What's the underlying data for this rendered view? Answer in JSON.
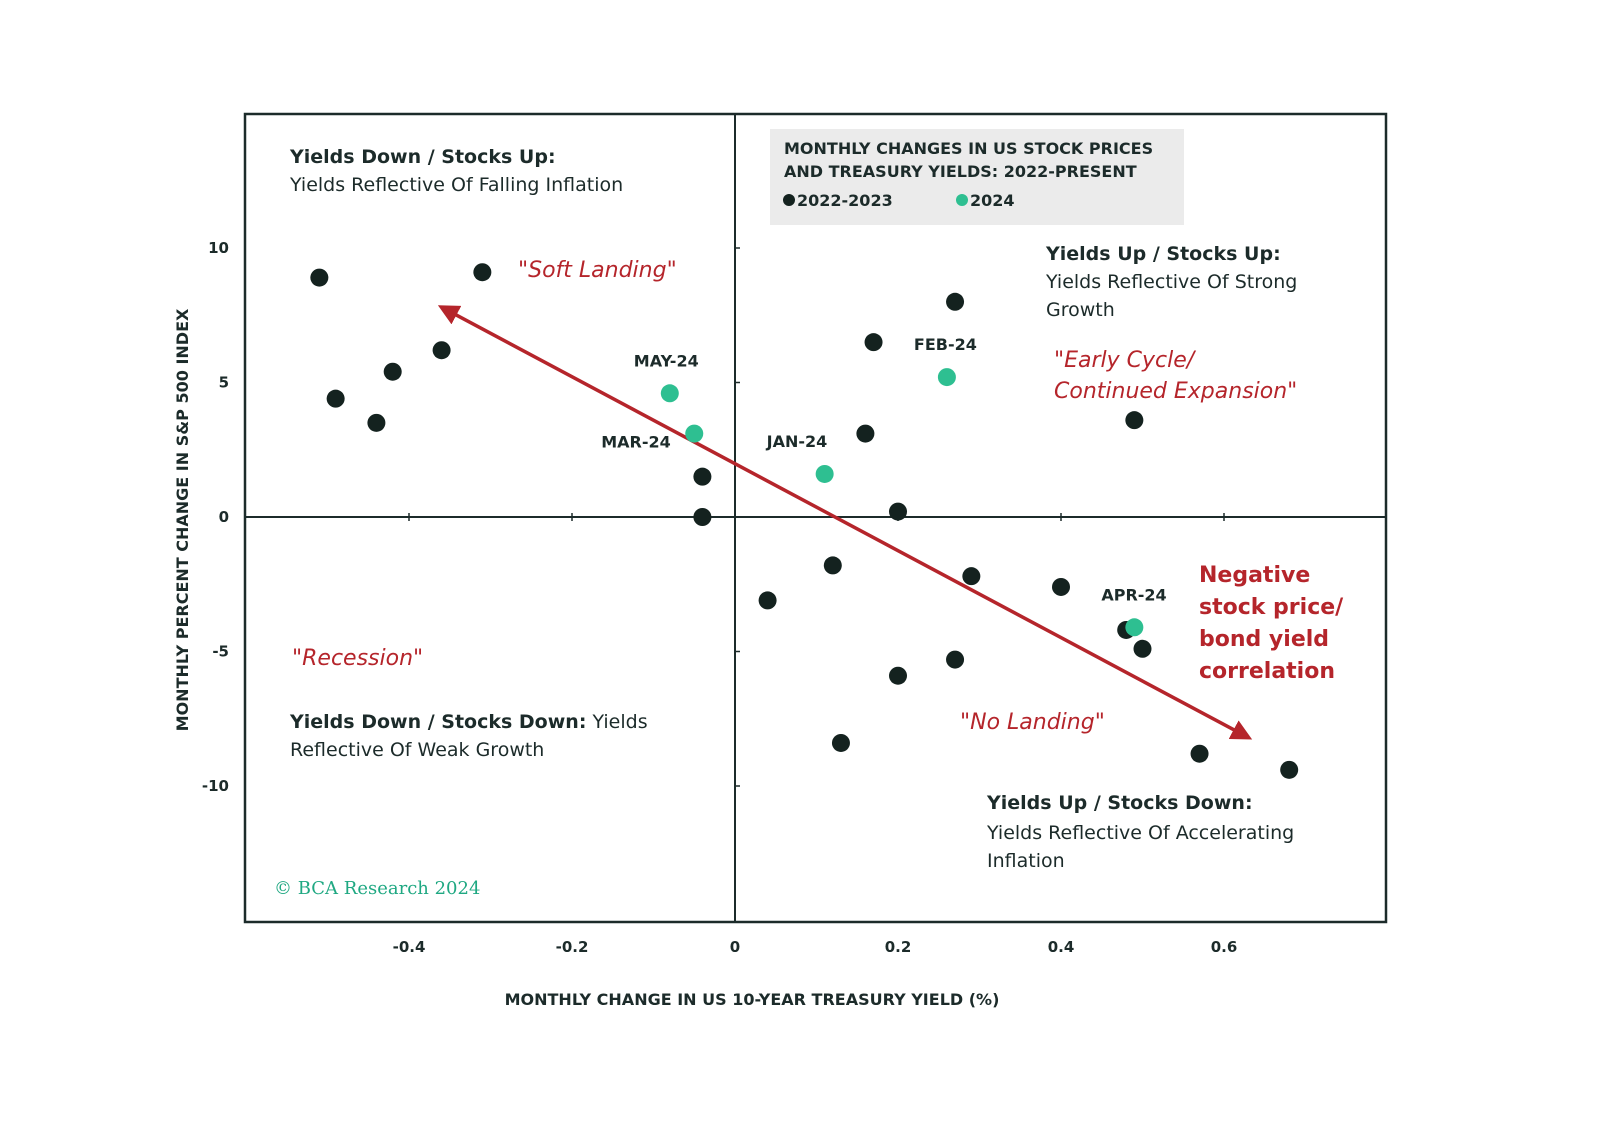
{
  "chart_data": {
    "type": "scatter",
    "title": "MONTHLY CHANGES IN US STOCK PRICES AND TREASURY YIELDS: 2022-PRESENT",
    "title_lines": [
      "MONTHLY CHANGES IN US STOCK PRICES",
      "AND TREASURY YIELDS: 2022-PRESENT"
    ],
    "xlabel": "MONTHLY CHANGE IN US 10-YEAR TREASURY YIELD (%)",
    "ylabel": "MONTHLY PERCENT CHANGE IN S&P 500 INDEX",
    "xlim": [
      -0.6,
      0.8
    ],
    "ylim": [
      -15,
      15
    ],
    "x_ticks": [
      -0.4,
      -0.2,
      0,
      0.2,
      0.4,
      0.6
    ],
    "x_tick_labels": [
      "-0.4",
      "-0.2",
      "0",
      "0.2",
      "0.4",
      "0.6"
    ],
    "y_ticks": [
      10,
      5,
      0,
      -5,
      -10
    ],
    "y_tick_labels": [
      "10",
      "5",
      "0",
      "-5",
      "-10"
    ],
    "grid": false,
    "legend": {
      "position": "top-center",
      "entries": [
        {
          "label": "2022-2023",
          "color": "#14221f"
        },
        {
          "label": "2024",
          "color": "#2ebf91"
        }
      ]
    },
    "series": [
      {
        "name": "2022-2023",
        "color": "#14221f",
        "points": [
          {
            "x": -0.51,
            "y": 8.9
          },
          {
            "x": -0.31,
            "y": 9.1
          },
          {
            "x": -0.49,
            "y": 4.4
          },
          {
            "x": -0.44,
            "y": 3.5
          },
          {
            "x": -0.42,
            "y": 5.4
          },
          {
            "x": -0.36,
            "y": 6.2
          },
          {
            "x": -0.04,
            "y": 1.5
          },
          {
            "x": -0.04,
            "y": 0.0
          },
          {
            "x": 0.16,
            "y": 3.1
          },
          {
            "x": 0.17,
            "y": 6.5
          },
          {
            "x": 0.27,
            "y": 8.0
          },
          {
            "x": 0.49,
            "y": 3.6
          },
          {
            "x": 0.2,
            "y": 0.2
          },
          {
            "x": 0.04,
            "y": -3.1
          },
          {
            "x": 0.12,
            "y": -1.8
          },
          {
            "x": 0.29,
            "y": -2.2
          },
          {
            "x": 0.4,
            "y": -2.6
          },
          {
            "x": 0.48,
            "y": -4.2
          },
          {
            "x": 0.5,
            "y": -4.9
          },
          {
            "x": 0.27,
            "y": -5.3
          },
          {
            "x": 0.2,
            "y": -5.9
          },
          {
            "x": 0.13,
            "y": -8.4
          },
          {
            "x": 0.57,
            "y": -8.8
          },
          {
            "x": 0.68,
            "y": -9.4
          }
        ]
      },
      {
        "name": "2024",
        "color": "#2ebf91",
        "points": [
          {
            "x": -0.08,
            "y": 4.6,
            "label": "MAY-24"
          },
          {
            "x": -0.05,
            "y": 3.1,
            "label": "MAR-24"
          },
          {
            "x": 0.11,
            "y": 1.6,
            "label": "JAN-24"
          },
          {
            "x": 0.26,
            "y": 5.2,
            "label": "FEB-24"
          },
          {
            "x": 0.49,
            "y": -4.1,
            "label": "APR-24"
          }
        ]
      }
    ],
    "trend_arrow": {
      "color": "#b5252b",
      "from": [
        0.51,
        -4.6
      ],
      "to": [
        -0.36,
        7.8
      ],
      "tail_head_to": [
        0.63,
        -8.2
      ]
    },
    "quadrants": [
      {
        "position": "top-left",
        "heading": "Yields Down / Stocks Up:",
        "body_lines": [
          "Yields Reflective Of Falling Inflation"
        ]
      },
      {
        "position": "top-right",
        "heading": "Yields Up / Stocks Up:",
        "body_lines": [
          "Yields Reflective Of Strong",
          "Growth"
        ]
      },
      {
        "position": "bottom-left",
        "heading": "Yields Down / Stocks Down:",
        "heading_tail": " Yields",
        "body_lines": [
          "Reflective Of Weak Growth"
        ]
      },
      {
        "position": "bottom-right",
        "heading": "Yields Up / Stocks Down:",
        "body_lines": [
          "Yields Reflective Of Accelerating",
          "Inflation"
        ]
      }
    ],
    "annotations": {
      "soft_landing": "\"Soft Landing\"",
      "early_cycle_lines": [
        "\"Early Cycle/",
        "Continued Expansion\""
      ],
      "recession": "\"Recession\"",
      "no_landing": "\"No Landing\"",
      "correlation_lines": [
        "Negative",
        "stock price/",
        "bond yield",
        "correlation"
      ]
    },
    "credit": "© BCA Research 2024"
  }
}
